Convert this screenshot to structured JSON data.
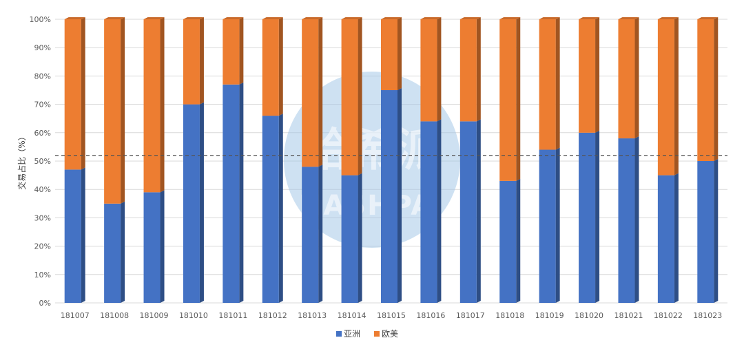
{
  "chart_data": {
    "type": "bar",
    "stacked": true,
    "percent": true,
    "ylabel": "交易占比（%）",
    "ylim": [
      0,
      100
    ],
    "yticks": [
      "0%",
      "10%",
      "20%",
      "30%",
      "40%",
      "50%",
      "60%",
      "70%",
      "80%",
      "90%",
      "100%"
    ],
    "grid": true,
    "legend_position": "bottom",
    "reference_line": 52,
    "categories": [
      "181007",
      "181008",
      "181009",
      "181010",
      "181011",
      "181012",
      "181013",
      "181014",
      "181015",
      "181016",
      "181017",
      "181018",
      "181019",
      "181020",
      "181021",
      "181022",
      "181023"
    ],
    "series": [
      {
        "name": "亚洲",
        "color": "#4472C4",
        "values": [
          47,
          35,
          39,
          70,
          77,
          66,
          48,
          45,
          75,
          64,
          64,
          43,
          54,
          60,
          58,
          45,
          50
        ]
      },
      {
        "name": "欧美",
        "color": "#ED7D31",
        "values": [
          53,
          65,
          61,
          30,
          23,
          34,
          52,
          55,
          25,
          36,
          36,
          57,
          46,
          40,
          42,
          55,
          50
        ]
      }
    ]
  },
  "watermark": {
    "text_cn": "哈希派",
    "text_en": "HASHPAI",
    "color": "#9DC3E6"
  }
}
